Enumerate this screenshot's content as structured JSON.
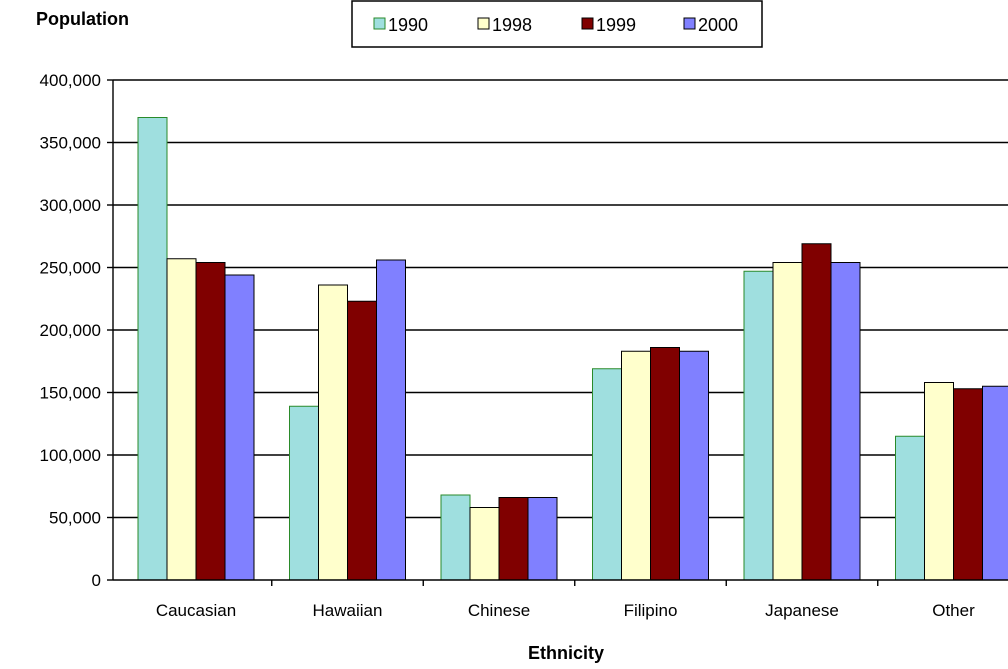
{
  "chart_data": {
    "type": "bar",
    "ylabel": "Population",
    "xlabel": "Ethnicity",
    "categories": [
      "Caucasian",
      "Hawaiian",
      "Chinese",
      "Filipino",
      "Japanese",
      "Other"
    ],
    "series": [
      {
        "name": "1990",
        "color": "#9fdfdf",
        "values": [
          370000,
          139000,
          68000,
          169000,
          247000,
          115000
        ]
      },
      {
        "name": "1998",
        "color": "#ffffcc",
        "values": [
          257000,
          236000,
          58000,
          183000,
          254000,
          158000
        ]
      },
      {
        "name": "1999",
        "color": "#800000",
        "values": [
          254000,
          223000,
          66000,
          186000,
          269000,
          153000
        ]
      },
      {
        "name": "2000",
        "color": "#8080ff",
        "values": [
          244000,
          256000,
          66000,
          183000,
          254000,
          155000
        ]
      }
    ],
    "ylim": [
      0,
      400000
    ],
    "yticks": [
      0,
      50000,
      100000,
      150000,
      200000,
      250000,
      300000,
      350000,
      400000
    ],
    "ytick_labels": [
      "0",
      "50,000",
      "100,000",
      "150,000",
      "200,000",
      "250,000",
      "300,000",
      "350,000",
      "400,000"
    ],
    "grid": true,
    "legend_position": "top-center"
  }
}
